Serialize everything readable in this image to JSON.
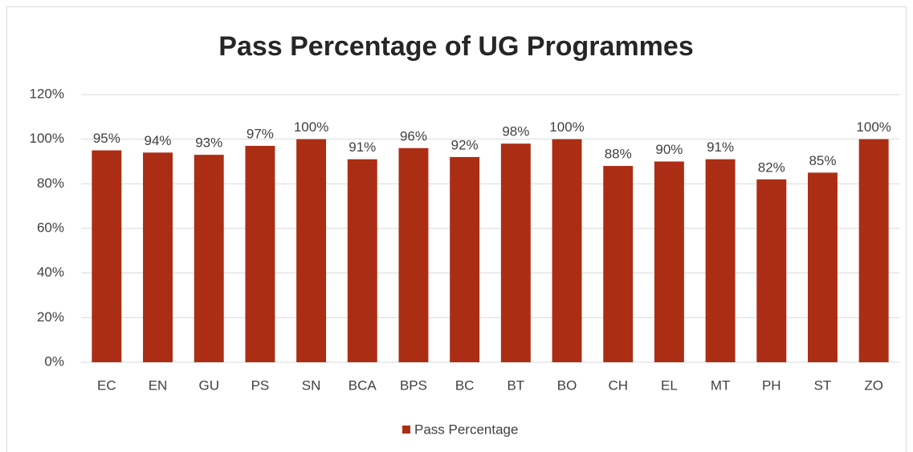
{
  "chart_data": {
    "type": "bar",
    "title": "Pass Percentage of UG Programmes",
    "categories": [
      "EC",
      "EN",
      "GU",
      "PS",
      "SN",
      "BCA",
      "BPS",
      "BC",
      "BT",
      "BO",
      "CH",
      "EL",
      "MT",
      "PH",
      "ST",
      "ZO"
    ],
    "series": [
      {
        "name": "Pass Percentage",
        "color": "#ab2e14",
        "values": [
          95,
          94,
          93,
          97,
          100,
          91,
          96,
          92,
          98,
          100,
          88,
          90,
          91,
          82,
          85,
          100
        ],
        "value_labels": [
          "95%",
          "94%",
          "93%",
          "97%",
          "100%",
          "91%",
          "96%",
          "92%",
          "98%",
          "100%",
          "88%",
          "90%",
          "91%",
          "82%",
          "85%",
          "100%"
        ]
      }
    ],
    "ylim": [
      0,
      120
    ],
    "yticks": [
      {
        "value": 0,
        "label": "0%"
      },
      {
        "value": 20,
        "label": "20%"
      },
      {
        "value": 40,
        "label": "40%"
      },
      {
        "value": 60,
        "label": "60%"
      },
      {
        "value": 80,
        "label": "80%"
      },
      {
        "value": 100,
        "label": "100%"
      },
      {
        "value": 120,
        "label": "120%"
      }
    ],
    "grid": true,
    "legend": "bottom"
  }
}
